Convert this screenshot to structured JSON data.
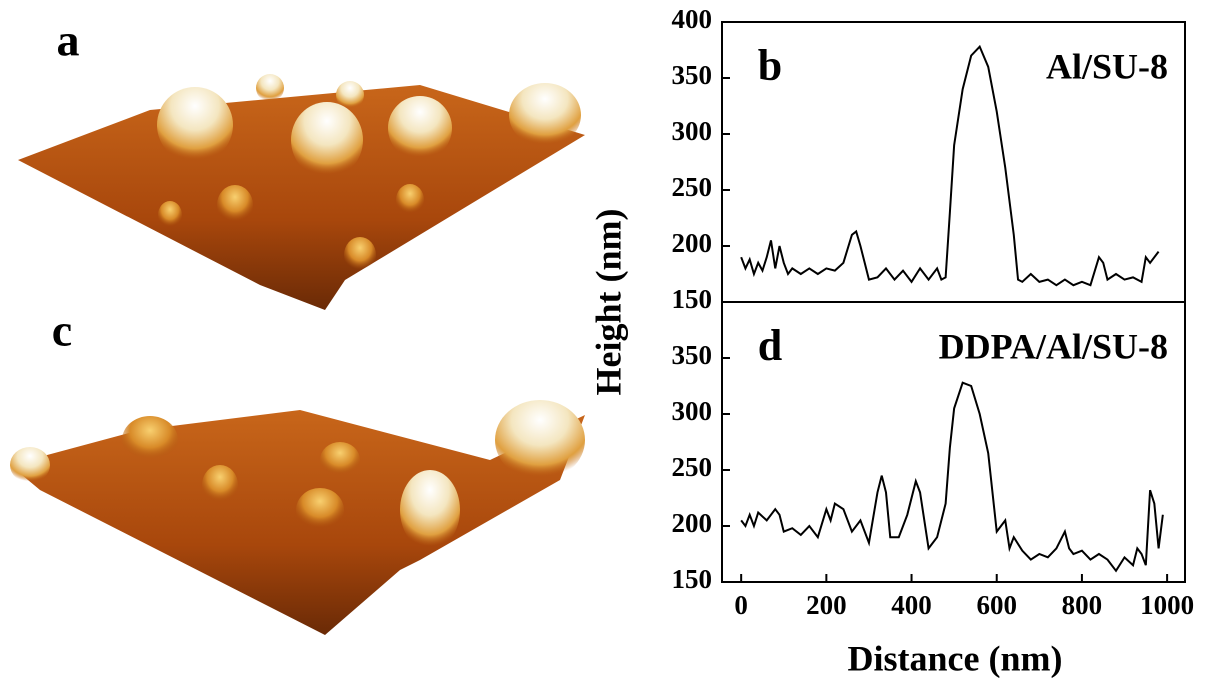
{
  "image_labels": [
    "a",
    "c"
  ],
  "chart_data": [
    {
      "type": "line",
      "panel_label": "b",
      "annotation": "Al/SU-8",
      "ylabel": "Height (nm)",
      "color": "#000000",
      "xlim": [
        -45,
        1042
      ],
      "ylim": [
        150,
        400
      ],
      "yticks": [
        150,
        200,
        250,
        300,
        350,
        400
      ],
      "x": [
        0,
        10,
        20,
        30,
        40,
        50,
        60,
        70,
        80,
        90,
        100,
        110,
        120,
        140,
        160,
        180,
        200,
        220,
        240,
        260,
        270,
        280,
        290,
        300,
        320,
        340,
        360,
        380,
        400,
        420,
        440,
        460,
        470,
        480,
        490,
        500,
        520,
        540,
        560,
        580,
        600,
        620,
        640,
        650,
        660,
        680,
        700,
        720,
        740,
        760,
        780,
        800,
        820,
        840,
        850,
        860,
        880,
        900,
        920,
        940,
        950,
        960,
        980
      ],
      "values": [
        190,
        180,
        188,
        175,
        185,
        178,
        190,
        205,
        180,
        200,
        185,
        175,
        180,
        175,
        180,
        175,
        180,
        178,
        185,
        210,
        213,
        200,
        185,
        170,
        172,
        180,
        170,
        178,
        168,
        180,
        170,
        180,
        170,
        172,
        230,
        290,
        340,
        370,
        378,
        360,
        320,
        270,
        210,
        170,
        168,
        175,
        168,
        170,
        165,
        170,
        165,
        168,
        165,
        190,
        185,
        170,
        175,
        170,
        172,
        168,
        190,
        185,
        195
      ]
    },
    {
      "type": "line",
      "panel_label": "d",
      "annotation": "DDPA/Al/SU-8",
      "xlabel": "Distance (nm)",
      "color": "#000000",
      "xlim": [
        -45,
        1042
      ],
      "ylim": [
        150,
        400
      ],
      "yticks": [
        150,
        200,
        250,
        300,
        350
      ],
      "xticks": [
        0,
        200,
        400,
        600,
        800,
        1000
      ],
      "x": [
        0,
        10,
        20,
        30,
        40,
        60,
        80,
        90,
        100,
        120,
        140,
        160,
        180,
        200,
        210,
        220,
        240,
        260,
        280,
        300,
        320,
        330,
        340,
        350,
        370,
        390,
        410,
        420,
        440,
        460,
        480,
        490,
        500,
        520,
        540,
        560,
        580,
        600,
        610,
        620,
        630,
        640,
        660,
        680,
        700,
        720,
        740,
        760,
        770,
        780,
        800,
        820,
        840,
        860,
        880,
        900,
        920,
        930,
        940,
        950,
        960,
        970,
        980,
        990
      ],
      "values": [
        205,
        200,
        210,
        200,
        212,
        205,
        215,
        210,
        195,
        198,
        192,
        200,
        190,
        215,
        205,
        220,
        215,
        195,
        205,
        185,
        230,
        245,
        230,
        190,
        190,
        210,
        240,
        230,
        180,
        190,
        220,
        270,
        305,
        328,
        325,
        300,
        265,
        195,
        200,
        205,
        180,
        190,
        178,
        170,
        175,
        172,
        180,
        195,
        180,
        175,
        178,
        170,
        175,
        170,
        160,
        172,
        165,
        180,
        175,
        165,
        232,
        220,
        180,
        210
      ]
    }
  ]
}
